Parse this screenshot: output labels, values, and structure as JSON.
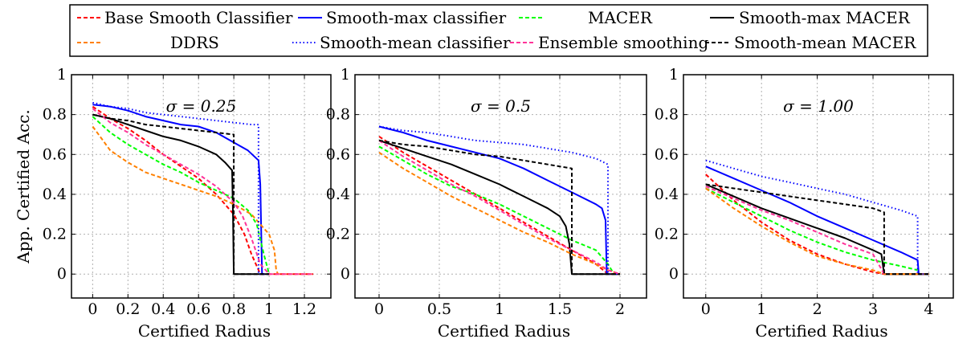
{
  "legend": [
    {
      "name": "Base Smooth Classifier",
      "color": "#ff0000",
      "dash": "dashed"
    },
    {
      "name": "Smooth-max classifier",
      "color": "#0000ff",
      "dash": "solid"
    },
    {
      "name": "MACER",
      "color": "#00ff00",
      "dash": "dashed"
    },
    {
      "name": "Smooth-max MACER",
      "color": "#000000",
      "dash": "solid"
    },
    {
      "name": "DDRS",
      "color": "#ff8000",
      "dash": "dashed"
    },
    {
      "name": "Smooth-mean classifier",
      "color": "#0000ff",
      "dash": "dotted"
    },
    {
      "name": "Ensemble smoothing",
      "color": "#ff3399",
      "dash": "dashed"
    },
    {
      "name": "Smooth-mean MACER",
      "color": "#000000",
      "dash": "dashed"
    }
  ],
  "ylabel": "App. Certified Acc.",
  "chart_data": [
    {
      "type": "line",
      "title": "σ = 0.25",
      "xlabel": "Certified Radius",
      "ylabel": "App. Certified Acc.",
      "xlim": [
        -0.12,
        1.35
      ],
      "ylim": [
        -0.12,
        1.0
      ],
      "xticks": [
        0,
        0.2,
        0.4,
        0.6,
        0.8,
        1,
        1.2
      ],
      "xtick_labels": [
        "0",
        "0.2",
        "0.4",
        "0.6",
        "0.8",
        "1",
        "1.2"
      ],
      "yticks": [
        0,
        0.2,
        0.4,
        0.6,
        0.8,
        1
      ],
      "ytick_labels": [
        "0",
        "0.2",
        "0.4",
        "0.6",
        "0.8",
        "1"
      ],
      "grid": true,
      "series": [
        {
          "name": "Base Smooth Classifier",
          "x": [
            0,
            0.1,
            0.2,
            0.3,
            0.4,
            0.5,
            0.6,
            0.7,
            0.8,
            0.86,
            0.9,
            0.95,
            1.0,
            1.25
          ],
          "y": [
            0.84,
            0.78,
            0.73,
            0.67,
            0.6,
            0.54,
            0.48,
            0.4,
            0.3,
            0.2,
            0.1,
            0.0,
            0.0,
            0.0
          ]
        },
        {
          "name": "Smooth-max classifier",
          "x": [
            0,
            0.1,
            0.2,
            0.3,
            0.4,
            0.5,
            0.6,
            0.7,
            0.8,
            0.88,
            0.94,
            0.95,
            0.96,
            0.97
          ],
          "y": [
            0.85,
            0.84,
            0.82,
            0.79,
            0.77,
            0.75,
            0.74,
            0.71,
            0.66,
            0.62,
            0.57,
            0.45,
            0.0,
            0.0
          ]
        },
        {
          "name": "MACER",
          "x": [
            0,
            0.1,
            0.2,
            0.3,
            0.4,
            0.5,
            0.6,
            0.7,
            0.8,
            0.88,
            0.93,
            0.97,
            1.0
          ],
          "y": [
            0.79,
            0.71,
            0.65,
            0.6,
            0.55,
            0.51,
            0.46,
            0.42,
            0.38,
            0.32,
            0.25,
            0.1,
            0.0
          ]
        },
        {
          "name": "Smooth-max MACER",
          "x": [
            0,
            0.1,
            0.2,
            0.3,
            0.4,
            0.5,
            0.6,
            0.7,
            0.75,
            0.79,
            0.795,
            0.8,
            1.0
          ],
          "y": [
            0.8,
            0.78,
            0.75,
            0.72,
            0.69,
            0.67,
            0.64,
            0.6,
            0.56,
            0.52,
            0.3,
            0.0,
            0.0
          ]
        },
        {
          "name": "DDRS",
          "x": [
            0,
            0.05,
            0.1,
            0.2,
            0.3,
            0.4,
            0.5,
            0.6,
            0.7,
            0.8,
            0.9,
            1.0,
            1.03,
            1.04,
            1.05,
            1.25
          ],
          "y": [
            0.74,
            0.68,
            0.62,
            0.56,
            0.51,
            0.48,
            0.45,
            0.42,
            0.39,
            0.35,
            0.3,
            0.2,
            0.12,
            0.02,
            0.0,
            0.0
          ]
        },
        {
          "name": "Smooth-mean classifier",
          "x": [
            0,
            0.1,
            0.2,
            0.3,
            0.4,
            0.5,
            0.6,
            0.7,
            0.8,
            0.9,
            0.94,
            0.94,
            1.0
          ],
          "y": [
            0.86,
            0.84,
            0.83,
            0.81,
            0.8,
            0.79,
            0.78,
            0.77,
            0.76,
            0.75,
            0.75,
            0.0,
            0.0
          ]
        },
        {
          "name": "Ensemble smoothing",
          "x": [
            0,
            0.1,
            0.2,
            0.3,
            0.4,
            0.5,
            0.6,
            0.7,
            0.8,
            0.85,
            0.9,
            0.95,
            1.0,
            1.25
          ],
          "y": [
            0.83,
            0.76,
            0.71,
            0.65,
            0.6,
            0.55,
            0.5,
            0.44,
            0.36,
            0.29,
            0.18,
            0.05,
            0.0,
            0.0
          ]
        },
        {
          "name": "Smooth-mean MACER",
          "x": [
            0,
            0.1,
            0.2,
            0.3,
            0.4,
            0.5,
            0.6,
            0.7,
            0.8,
            0.8,
            1.0
          ],
          "y": [
            0.8,
            0.78,
            0.77,
            0.75,
            0.74,
            0.73,
            0.72,
            0.71,
            0.7,
            0.0,
            0.0
          ]
        }
      ]
    },
    {
      "type": "line",
      "title": "σ = 0.5",
      "xlabel": "Certified Radius",
      "ylabel": "",
      "xlim": [
        -0.2,
        2.22
      ],
      "ylim": [
        -0.12,
        1.0
      ],
      "xticks": [
        0,
        0.5,
        1,
        1.5,
        2
      ],
      "xtick_labels": [
        "0",
        "0.5",
        "1",
        "1.5",
        "2"
      ],
      "yticks": [
        0,
        0.2,
        0.4,
        0.6,
        0.8,
        1
      ],
      "ytick_labels": [
        "0",
        "0.2",
        "0.4",
        "0.6",
        "0.8",
        "1"
      ],
      "grid": true,
      "series": [
        {
          "name": "Base Smooth Classifier",
          "x": [
            0,
            0.2,
            0.4,
            0.6,
            0.8,
            1.0,
            1.2,
            1.4,
            1.6,
            1.8,
            1.9,
            2.0
          ],
          "y": [
            0.69,
            0.61,
            0.54,
            0.47,
            0.4,
            0.33,
            0.26,
            0.19,
            0.12,
            0.05,
            0.0,
            0.0
          ]
        },
        {
          "name": "Smooth-max classifier",
          "x": [
            0,
            0.2,
            0.4,
            0.6,
            0.8,
            1.0,
            1.2,
            1.4,
            1.6,
            1.8,
            1.85,
            1.88,
            1.89,
            1.9
          ],
          "y": [
            0.74,
            0.71,
            0.67,
            0.64,
            0.61,
            0.58,
            0.53,
            0.47,
            0.41,
            0.35,
            0.33,
            0.27,
            0.0,
            0.0
          ]
        },
        {
          "name": "MACER",
          "x": [
            0,
            0.2,
            0.4,
            0.6,
            0.8,
            1.0,
            1.2,
            1.4,
            1.6,
            1.8,
            1.9,
            1.95,
            2.0
          ],
          "y": [
            0.64,
            0.57,
            0.5,
            0.44,
            0.4,
            0.35,
            0.29,
            0.23,
            0.17,
            0.12,
            0.05,
            0.0,
            0.0
          ]
        },
        {
          "name": "Smooth-max MACER",
          "x": [
            0,
            0.2,
            0.4,
            0.6,
            0.8,
            1.0,
            1.2,
            1.4,
            1.5,
            1.55,
            1.58,
            1.6,
            2.0
          ],
          "y": [
            0.67,
            0.63,
            0.59,
            0.55,
            0.5,
            0.45,
            0.39,
            0.33,
            0.29,
            0.24,
            0.15,
            0.0,
            0.0
          ]
        },
        {
          "name": "DDRS",
          "x": [
            0,
            0.2,
            0.4,
            0.6,
            0.8,
            1.0,
            1.2,
            1.4,
            1.6,
            1.8,
            1.9,
            2.0
          ],
          "y": [
            0.61,
            0.53,
            0.46,
            0.39,
            0.33,
            0.27,
            0.21,
            0.16,
            0.1,
            0.05,
            0.02,
            0.0
          ]
        },
        {
          "name": "Smooth-mean classifier",
          "x": [
            0,
            0.2,
            0.4,
            0.6,
            0.8,
            1.0,
            1.2,
            1.4,
            1.6,
            1.8,
            1.9,
            1.9,
            2.0
          ],
          "y": [
            0.74,
            0.72,
            0.71,
            0.69,
            0.67,
            0.66,
            0.65,
            0.63,
            0.61,
            0.58,
            0.55,
            0.0,
            0.0
          ]
        },
        {
          "name": "Ensemble smoothing",
          "x": [
            0,
            0.2,
            0.4,
            0.6,
            0.8,
            1.0,
            1.2,
            1.4,
            1.6,
            1.8,
            1.9,
            2.0
          ],
          "y": [
            0.67,
            0.59,
            0.52,
            0.45,
            0.39,
            0.32,
            0.25,
            0.18,
            0.12,
            0.06,
            0.02,
            0.0
          ]
        },
        {
          "name": "Smooth-mean MACER",
          "x": [
            0,
            0.2,
            0.4,
            0.6,
            0.8,
            1.0,
            1.2,
            1.4,
            1.6,
            1.6,
            2.0
          ],
          "y": [
            0.67,
            0.65,
            0.64,
            0.62,
            0.6,
            0.59,
            0.57,
            0.55,
            0.53,
            0.0,
            0.0
          ]
        }
      ]
    },
    {
      "type": "line",
      "title": "σ = 1.00",
      "xlabel": "Certified Radius",
      "ylabel": "",
      "xlim": [
        -0.4,
        4.44
      ],
      "ylim": [
        -0.12,
        1.0
      ],
      "xticks": [
        0,
        1,
        2,
        3,
        4
      ],
      "xtick_labels": [
        "0",
        "1",
        "2",
        "3",
        "4"
      ],
      "yticks": [
        0,
        0.2,
        0.4,
        0.6,
        0.8,
        1
      ],
      "ytick_labels": [
        "0",
        "0.2",
        "0.4",
        "0.6",
        "0.8",
        "1"
      ],
      "grid": true,
      "series": [
        {
          "name": "Base Smooth Classifier",
          "x": [
            0,
            0.5,
            1.0,
            1.5,
            2.0,
            2.5,
            3.0,
            3.2,
            4.0
          ],
          "y": [
            0.5,
            0.37,
            0.26,
            0.17,
            0.1,
            0.05,
            0.01,
            0.0,
            0.0
          ]
        },
        {
          "name": "Smooth-max classifier",
          "x": [
            0,
            0.5,
            1.0,
            1.5,
            2.0,
            2.5,
            3.0,
            3.5,
            3.8,
            3.82,
            4.0
          ],
          "y": [
            0.54,
            0.48,
            0.42,
            0.36,
            0.29,
            0.23,
            0.17,
            0.11,
            0.07,
            0.0,
            0.0
          ]
        },
        {
          "name": "MACER",
          "x": [
            0,
            0.5,
            1.0,
            1.5,
            2.0,
            2.5,
            3.0,
            3.5,
            3.8
          ],
          "y": [
            0.43,
            0.36,
            0.29,
            0.22,
            0.16,
            0.11,
            0.07,
            0.04,
            0.02
          ]
        },
        {
          "name": "Smooth-max MACER",
          "x": [
            0,
            0.5,
            1.0,
            1.5,
            2.0,
            2.5,
            3.0,
            3.15,
            3.2,
            4.0
          ],
          "y": [
            0.45,
            0.39,
            0.33,
            0.28,
            0.23,
            0.18,
            0.12,
            0.1,
            0.0,
            0.0
          ]
        },
        {
          "name": "DDRS",
          "x": [
            0,
            0.5,
            1.0,
            1.5,
            2.0,
            2.5,
            3.0,
            3.2,
            4.0
          ],
          "y": [
            0.43,
            0.33,
            0.24,
            0.16,
            0.09,
            0.05,
            0.02,
            0.0,
            0.0
          ]
        },
        {
          "name": "Smooth-mean classifier",
          "x": [
            0,
            0.5,
            1.0,
            1.5,
            2.0,
            2.5,
            3.0,
            3.5,
            3.8,
            3.8,
            4.0
          ],
          "y": [
            0.57,
            0.53,
            0.49,
            0.46,
            0.43,
            0.4,
            0.36,
            0.32,
            0.29,
            0.0,
            0.0
          ]
        },
        {
          "name": "Ensemble smoothing",
          "x": [
            0,
            0.5,
            1.0,
            1.5,
            2.0,
            2.5,
            3.0,
            3.2
          ],
          "y": [
            0.44,
            0.38,
            0.32,
            0.27,
            0.21,
            0.15,
            0.1,
            0.0
          ]
        },
        {
          "name": "Smooth-mean MACER",
          "x": [
            0,
            0.5,
            1.0,
            1.5,
            2.0,
            2.5,
            3.0,
            3.2,
            3.2,
            4.0
          ],
          "y": [
            0.45,
            0.43,
            0.41,
            0.39,
            0.37,
            0.35,
            0.33,
            0.31,
            0.0,
            0.0
          ]
        }
      ]
    }
  ]
}
